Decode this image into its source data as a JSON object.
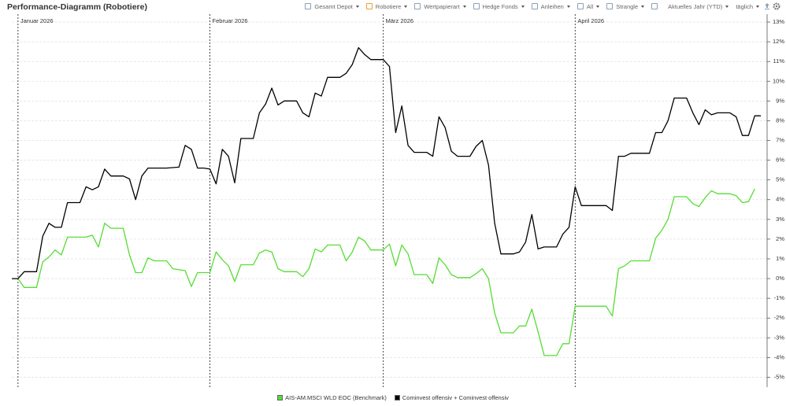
{
  "title": "Performance-Diagramm (Robotiere)",
  "toolbar": [
    {
      "label": "Gesamt Depot",
      "checkbox": "#8aa0b8",
      "dropdown": true
    },
    {
      "label": "Robotiere",
      "checkbox": "#f0a030",
      "dropdown": true
    },
    {
      "label": "Wertpapierart",
      "checkbox": "#8aa0b8",
      "dropdown": true
    },
    {
      "label": "Hedge Fonds",
      "checkbox": "#8aa0b8",
      "dropdown": true
    },
    {
      "label": "Anleihen",
      "checkbox": "#8aa0b8",
      "dropdown": true
    },
    {
      "label": "All",
      "checkbox": "#8aa0b8",
      "dropdown": true
    },
    {
      "label": "Strangle",
      "checkbox": "#8aa0b8",
      "dropdown": true
    },
    {
      "label": "Aktuelles Jahr (YTD)",
      "dropdown": true
    },
    {
      "label": "täglich",
      "dropdown": true
    }
  ],
  "chart_data": {
    "type": "line",
    "xlim": [
      0,
      122
    ],
    "ylim": [
      -5.5,
      13.4
    ],
    "yticks": [
      {
        "value": 13,
        "label": "13%"
      },
      {
        "value": 12,
        "label": "12%"
      },
      {
        "value": 11,
        "label": "11%"
      },
      {
        "value": 10,
        "label": "10%"
      },
      {
        "value": 9,
        "label": "9%"
      },
      {
        "value": 8,
        "label": "8%"
      },
      {
        "value": 7,
        "label": "7%"
      },
      {
        "value": 6,
        "label": "6%"
      },
      {
        "value": 5,
        "label": "5%"
      },
      {
        "value": 4,
        "label": "4%"
      },
      {
        "value": 3,
        "label": "3%"
      },
      {
        "value": 2,
        "label": "2%"
      },
      {
        "value": 1,
        "label": "1%"
      },
      {
        "value": 0,
        "label": "0%"
      },
      {
        "value": -1,
        "label": "-1%"
      },
      {
        "value": -2,
        "label": "-2%"
      },
      {
        "value": -3,
        "label": "-3%"
      },
      {
        "value": -4,
        "label": "-4%"
      },
      {
        "value": -5,
        "label": "-5%"
      }
    ],
    "month_markers": [
      {
        "value": 1,
        "label": "Januar 2026"
      },
      {
        "value": 32,
        "label": "Februar 2026"
      },
      {
        "value": 60,
        "label": "März 2026"
      },
      {
        "value": 91,
        "label": "April 2026"
      }
    ],
    "grid": true,
    "series": [
      {
        "name": "AIS-AM.MSCI WLD EOC (Benchmark)",
        "color": "#55dd33",
        "x": [
          0,
          1,
          2,
          4,
          5,
          6,
          7,
          8,
          9,
          12,
          13,
          14,
          15,
          16,
          18,
          19,
          20,
          21,
          22,
          23,
          25,
          26,
          28,
          29,
          30,
          32,
          33,
          34,
          35,
          36,
          37,
          39,
          40,
          41,
          42,
          43,
          44,
          46,
          47,
          48,
          49,
          50,
          51,
          53,
          54,
          55,
          56,
          57,
          58,
          60,
          61,
          62,
          63,
          64,
          65,
          67,
          68,
          69,
          70,
          71,
          72,
          74,
          75,
          76,
          77,
          78,
          79,
          81,
          82,
          83,
          84,
          85,
          86,
          88,
          89,
          90,
          91,
          92,
          96,
          97,
          98,
          99,
          100,
          103,
          104,
          105,
          106,
          107,
          109,
          110,
          111,
          112,
          113,
          114,
          116,
          117,
          118,
          119,
          120
        ],
        "values": [
          0,
          0,
          -0.45,
          -0.45,
          0.85,
          1.1,
          1.45,
          1.2,
          2.1,
          2.1,
          2.2,
          1.6,
          2.8,
          2.55,
          2.55,
          1.2,
          0.3,
          0.3,
          1.05,
          0.9,
          0.9,
          0.5,
          0.4,
          -0.4,
          0.3,
          0.3,
          1.35,
          0.95,
          0.65,
          -0.15,
          0.7,
          0.7,
          1.3,
          1.45,
          1.35,
          0.5,
          0.35,
          0.35,
          0.1,
          0.5,
          1.5,
          1.35,
          1.7,
          1.7,
          0.9,
          1.35,
          2.1,
          1.9,
          1.45,
          1.45,
          1.75,
          0.65,
          1.7,
          1.25,
          0.2,
          0.2,
          -0.25,
          1.05,
          0.7,
          0.2,
          0.05,
          0.05,
          0.25,
          0.5,
          0,
          -1.75,
          -2.75,
          -2.75,
          -2.4,
          -2.4,
          -1.55,
          -2.7,
          -3.9,
          -3.9,
          -3.3,
          -3.3,
          -1.4,
          -1.4,
          -1.4,
          -1.9,
          0.5,
          0.65,
          0.9,
          0.9,
          2.05,
          2.45,
          3.0,
          4.15,
          4.15,
          3.8,
          3.65,
          4.1,
          4.45,
          4.3,
          4.3,
          4.2,
          3.85,
          3.9,
          4.55
        ]
      },
      {
        "name": "Cominvest offensiv + Cominvest offensiv",
        "color": "#000000",
        "x": [
          0,
          1,
          2,
          4,
          5,
          6,
          7,
          8,
          9,
          11,
          12,
          13,
          14,
          15,
          16,
          18,
          19,
          20,
          21,
          22,
          25,
          27,
          28,
          29,
          30,
          31,
          32,
          33,
          34,
          35,
          36,
          37,
          39,
          40,
          41,
          42,
          43,
          44,
          46,
          47,
          48,
          49,
          50,
          51,
          53,
          54,
          55,
          56,
          57,
          58,
          60,
          61,
          62,
          63,
          64,
          65,
          67,
          68,
          69,
          70,
          71,
          72,
          74,
          75,
          76,
          77,
          78,
          79,
          81,
          82,
          83,
          84,
          85,
          86,
          88,
          89,
          90,
          91,
          92,
          96,
          97,
          98,
          99,
          100,
          103,
          104,
          105,
          106,
          107,
          109,
          110,
          111,
          112,
          113,
          114,
          116,
          117,
          118,
          119,
          120,
          121
        ],
        "values": [
          0,
          0,
          0.35,
          0.35,
          2.15,
          2.8,
          2.6,
          2.6,
          3.85,
          3.85,
          4.65,
          4.5,
          4.65,
          5.55,
          5.2,
          5.2,
          5.05,
          4.0,
          5.2,
          5.6,
          5.6,
          5.65,
          6.75,
          6.55,
          5.6,
          5.6,
          5.55,
          4.8,
          6.55,
          6.2,
          4.85,
          7.1,
          7.1,
          8.4,
          8.85,
          9.65,
          8.8,
          9.0,
          9.0,
          8.4,
          8.2,
          9.4,
          9.25,
          10.2,
          10.2,
          10.4,
          10.85,
          11.7,
          11.35,
          11.1,
          11.1,
          10.75,
          7.4,
          8.75,
          6.75,
          6.4,
          6.4,
          6.2,
          8.2,
          7.65,
          6.45,
          6.2,
          6.2,
          6.7,
          7.0,
          5.75,
          2.8,
          1.25,
          1.25,
          1.35,
          1.85,
          3.25,
          1.5,
          1.6,
          1.6,
          2.25,
          2.6,
          4.65,
          3.7,
          3.7,
          3.45,
          6.2,
          6.2,
          6.35,
          6.35,
          7.4,
          7.4,
          8.0,
          9.15,
          9.15,
          8.4,
          7.8,
          8.55,
          8.3,
          8.4,
          8.4,
          8.2,
          7.25,
          7.25,
          8.25,
          8.25
        ]
      }
    ]
  }
}
